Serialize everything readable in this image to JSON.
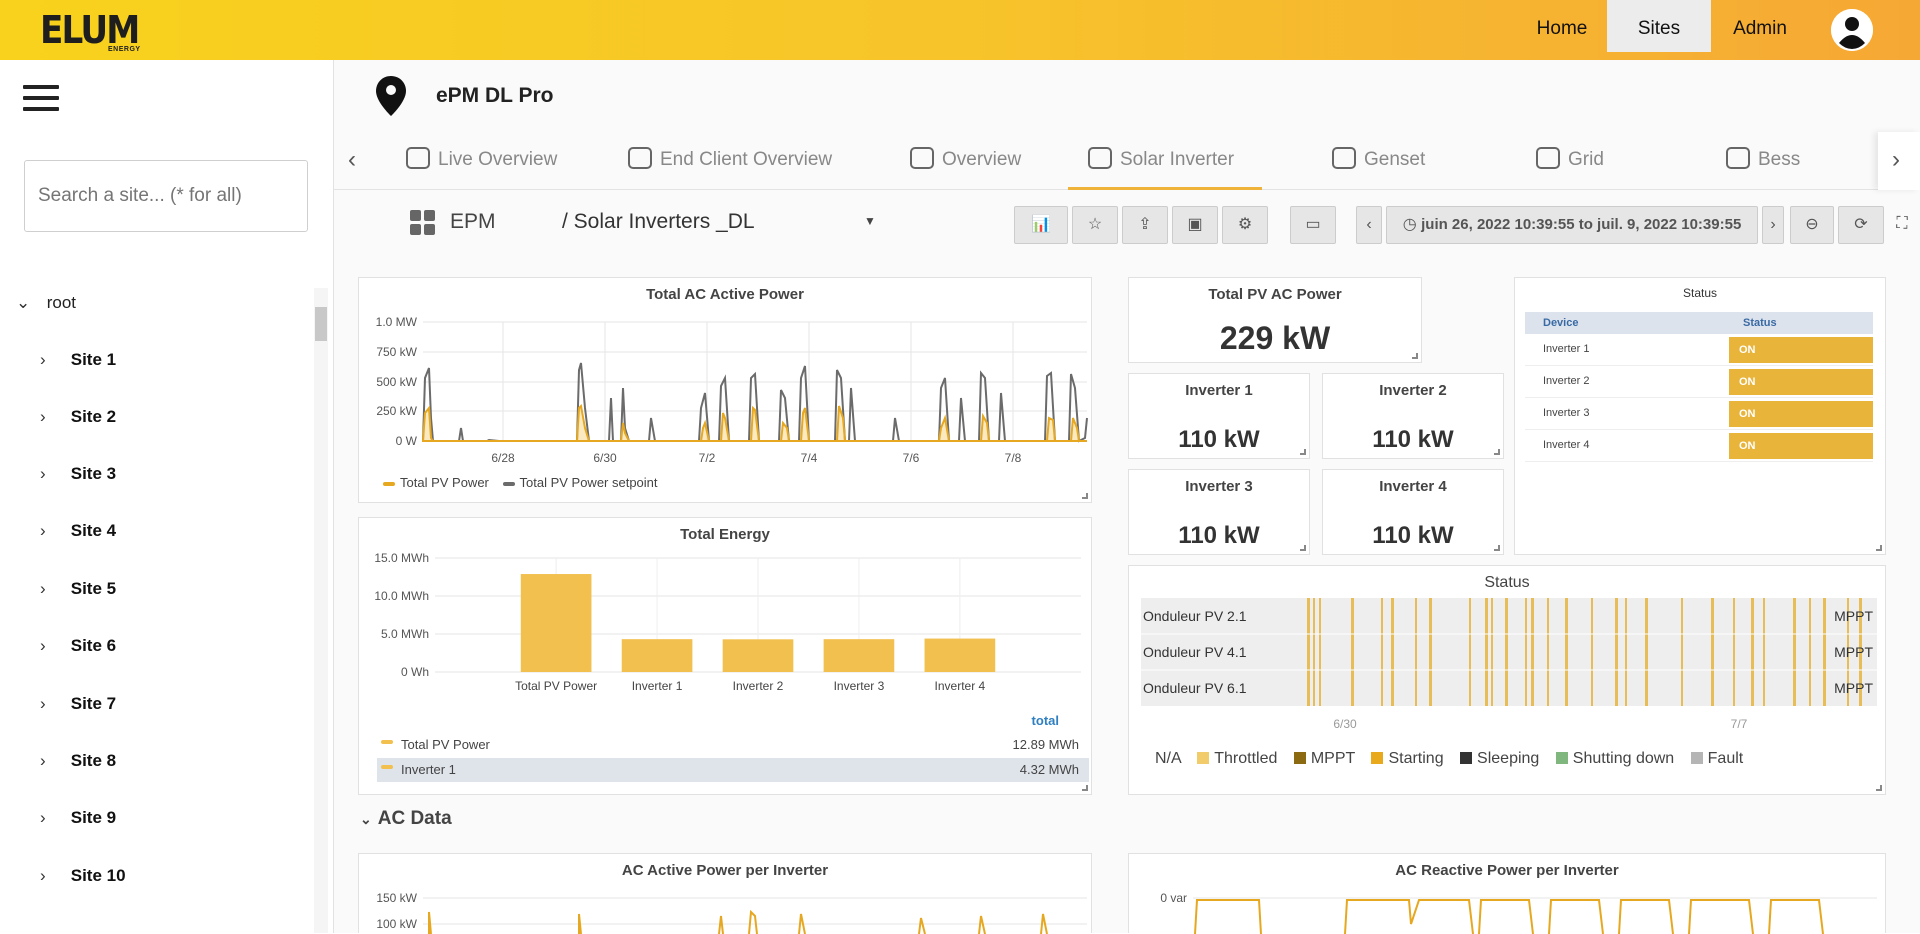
{
  "header": {
    "logo_text": "ELUM",
    "logo_sub": "ENERGY",
    "nav": [
      {
        "label": "Home",
        "active": false
      },
      {
        "label": "Sites",
        "active": true
      },
      {
        "label": "Admin",
        "active": false
      }
    ]
  },
  "sidebar": {
    "search_placeholder": "Search a site... (* for all)",
    "root_label": "root",
    "sites": [
      "Site 1",
      "Site 2",
      "Site 3",
      "Site 4",
      "Site 5",
      "Site 6",
      "Site 7",
      "Site 8",
      "Site 9",
      "Site 10"
    ]
  },
  "site": {
    "title": "ePM DL Pro"
  },
  "tabs": [
    {
      "label": "Live Overview",
      "active": false
    },
    {
      "label": "End Client Overview",
      "active": false
    },
    {
      "label": "Overview",
      "active": false
    },
    {
      "label": "Solar Inverter",
      "active": true
    },
    {
      "label": "Genset",
      "active": false
    },
    {
      "label": "Grid",
      "active": false
    },
    {
      "label": "Bess",
      "active": false
    }
  ],
  "toolbar": {
    "folder": "EPM",
    "dashboard": "/ Solar Inverters _DL",
    "time_range": "juin 26, 2022 10:39:55 to juil. 9, 2022 10:39:55"
  },
  "panels": {
    "ac_power": {
      "title": "Total AC Active Power",
      "yticks": [
        "1.0 MW",
        "750 kW",
        "500 kW",
        "250 kW",
        "0 W"
      ],
      "xticks": [
        "6/28",
        "6/30",
        "7/2",
        "7/4",
        "7/6",
        "7/8"
      ],
      "legend": [
        "Total PV Power",
        "Total PV Power setpoint"
      ]
    },
    "total_pv": {
      "title": "Total PV AC Power",
      "value": "229 kW"
    },
    "inverters": [
      {
        "title": "Inverter 1",
        "value": "110 kW"
      },
      {
        "title": "Inverter 2",
        "value": "110 kW"
      },
      {
        "title": "Inverter 3",
        "value": "110 kW"
      },
      {
        "title": "Inverter 4",
        "value": "110 kW"
      }
    ],
    "status_table": {
      "title": "Status",
      "col_device": "Device",
      "col_status": "Status",
      "rows": [
        {
          "device": "Inverter 1",
          "status": "ON"
        },
        {
          "device": "Inverter 2",
          "status": "ON"
        },
        {
          "device": "Inverter 3",
          "status": "ON"
        },
        {
          "device": "Inverter 4",
          "status": "ON"
        }
      ]
    },
    "energy": {
      "title": "Total Energy",
      "yticks": [
        "15.0 MWh",
        "10.0 MWh",
        "5.0 MWh",
        "0 Wh"
      ],
      "legend_header": "total",
      "legend": [
        {
          "name": "Total PV Power",
          "value": "12.89 MWh"
        },
        {
          "name": "Inverter 1",
          "value": "4.32 MWh"
        }
      ]
    },
    "status_timeline": {
      "title": "Status",
      "rows": [
        "Onduleur PV 2.1",
        "Onduleur PV 4.1",
        "Onduleur PV 6.1"
      ],
      "right_label": "MPPT",
      "xticks": [
        "6/30",
        "7/7"
      ],
      "legend": [
        {
          "name": "N/A",
          "color": ""
        },
        {
          "name": "Throttled",
          "color": "#f2cc6a"
        },
        {
          "name": "MPPT",
          "color": "#8c6a12"
        },
        {
          "name": "Starting",
          "color": "#e8a91c"
        },
        {
          "name": "Sleeping",
          "color": "#333333"
        },
        {
          "name": "Shutting down",
          "color": "#7fb77e"
        },
        {
          "name": "Fault",
          "color": "#b5b5b5"
        }
      ]
    },
    "section": {
      "title": "AC Data"
    },
    "ac_per_inv": {
      "title": "AC Active Power per Inverter",
      "yticks": [
        "150 kW",
        "100 kW"
      ]
    },
    "ac_reactive": {
      "title": "AC Reactive Power per Inverter",
      "yticks": [
        "0 var"
      ]
    }
  },
  "chart_data": [
    {
      "type": "bar",
      "title": "Total Energy",
      "categories": [
        "Total PV Power",
        "Inverter 1",
        "Inverter 2",
        "Inverter 3",
        "Inverter 4"
      ],
      "values": [
        12.89,
        4.32,
        4.3,
        4.32,
        4.4
      ],
      "ylabel": "",
      "ylim": [
        0,
        15
      ],
      "unit": "MWh"
    }
  ],
  "colors": {
    "accent": "#f0b33a",
    "bar": "#f2c04e",
    "setpoint": "#6b6b6b",
    "header_start": "#f8d21c",
    "header_end": "#f6a835"
  }
}
